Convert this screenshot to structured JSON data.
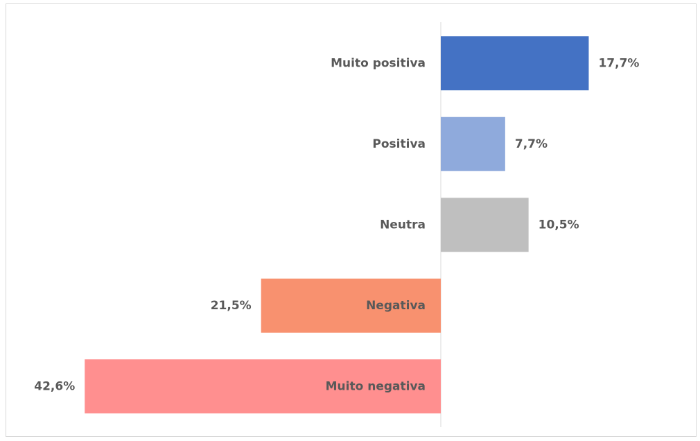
{
  "chart_data": {
    "type": "bar",
    "orientation": "horizontal",
    "categories": [
      "Muito positiva",
      "Positiva",
      "Neutra",
      "Negativa",
      "Muito negativa"
    ],
    "values": [
      17.7,
      7.7,
      10.5,
      -21.5,
      -42.6
    ],
    "value_labels": [
      "17,7%",
      "7,7%",
      "10,5%",
      "21,5%",
      "42,6%"
    ],
    "colors": [
      "#4472c4",
      "#8faadc",
      "#bfbfbf",
      "#f8916f",
      "#ff8f8f"
    ]
  }
}
